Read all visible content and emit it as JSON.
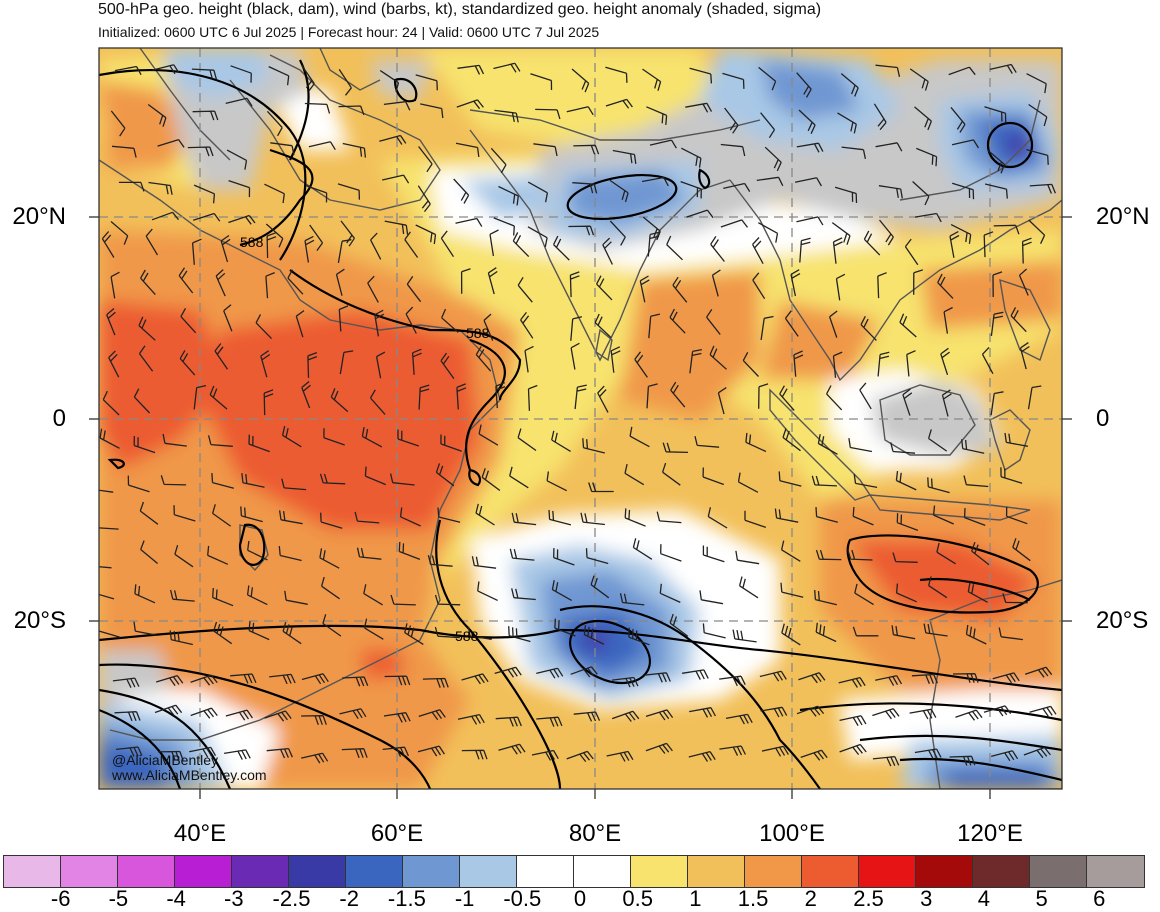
{
  "title": {
    "line1": "500-hPa geo. height (black, dam), wind (barbs, kt), standardized geo. height anomaly (shaded, sigma)",
    "line2": "Initialized: 0600 UTC 6 Jul 2025 | Forecast hour: 24 | Valid: 0600 UTC 7 Jul 2025"
  },
  "map": {
    "lat_labels": [
      "20°N",
      "0",
      "20°S"
    ],
    "lon_labels": [
      "40°E",
      "60°E",
      "80°E",
      "100°E",
      "120°E"
    ],
    "contour_labels": [
      "588",
      "588",
      "588"
    ],
    "credit": [
      "@AliciaMBentley",
      "www.AliciaMBentley.com"
    ],
    "colors": {
      "land_outline": "#555555",
      "contour": "#000000",
      "grid": "#888888"
    }
  },
  "colorbar": {
    "labels": [
      "-6",
      "-5",
      "-4",
      "-3",
      "-2.5",
      "-2",
      "-1.5",
      "-1",
      "-0.5",
      "0",
      "0.5",
      "1",
      "1.5",
      "2",
      "2.5",
      "3",
      "4",
      "5",
      "6"
    ],
    "colors": [
      "#e8b8e8",
      "#e283e6",
      "#d856dc",
      "#b81ed4",
      "#6a2ab4",
      "#3a3aa6",
      "#3a66c0",
      "#6f97d2",
      "#a9c8e6",
      "#ffffff",
      "#ffffff",
      "#f7e36e",
      "#f2c05a",
      "#f09848",
      "#ec5c30",
      "#e61414",
      "#a40a0a",
      "#6e2a2a",
      "#7a6e6e",
      "#a69c9c"
    ]
  }
}
